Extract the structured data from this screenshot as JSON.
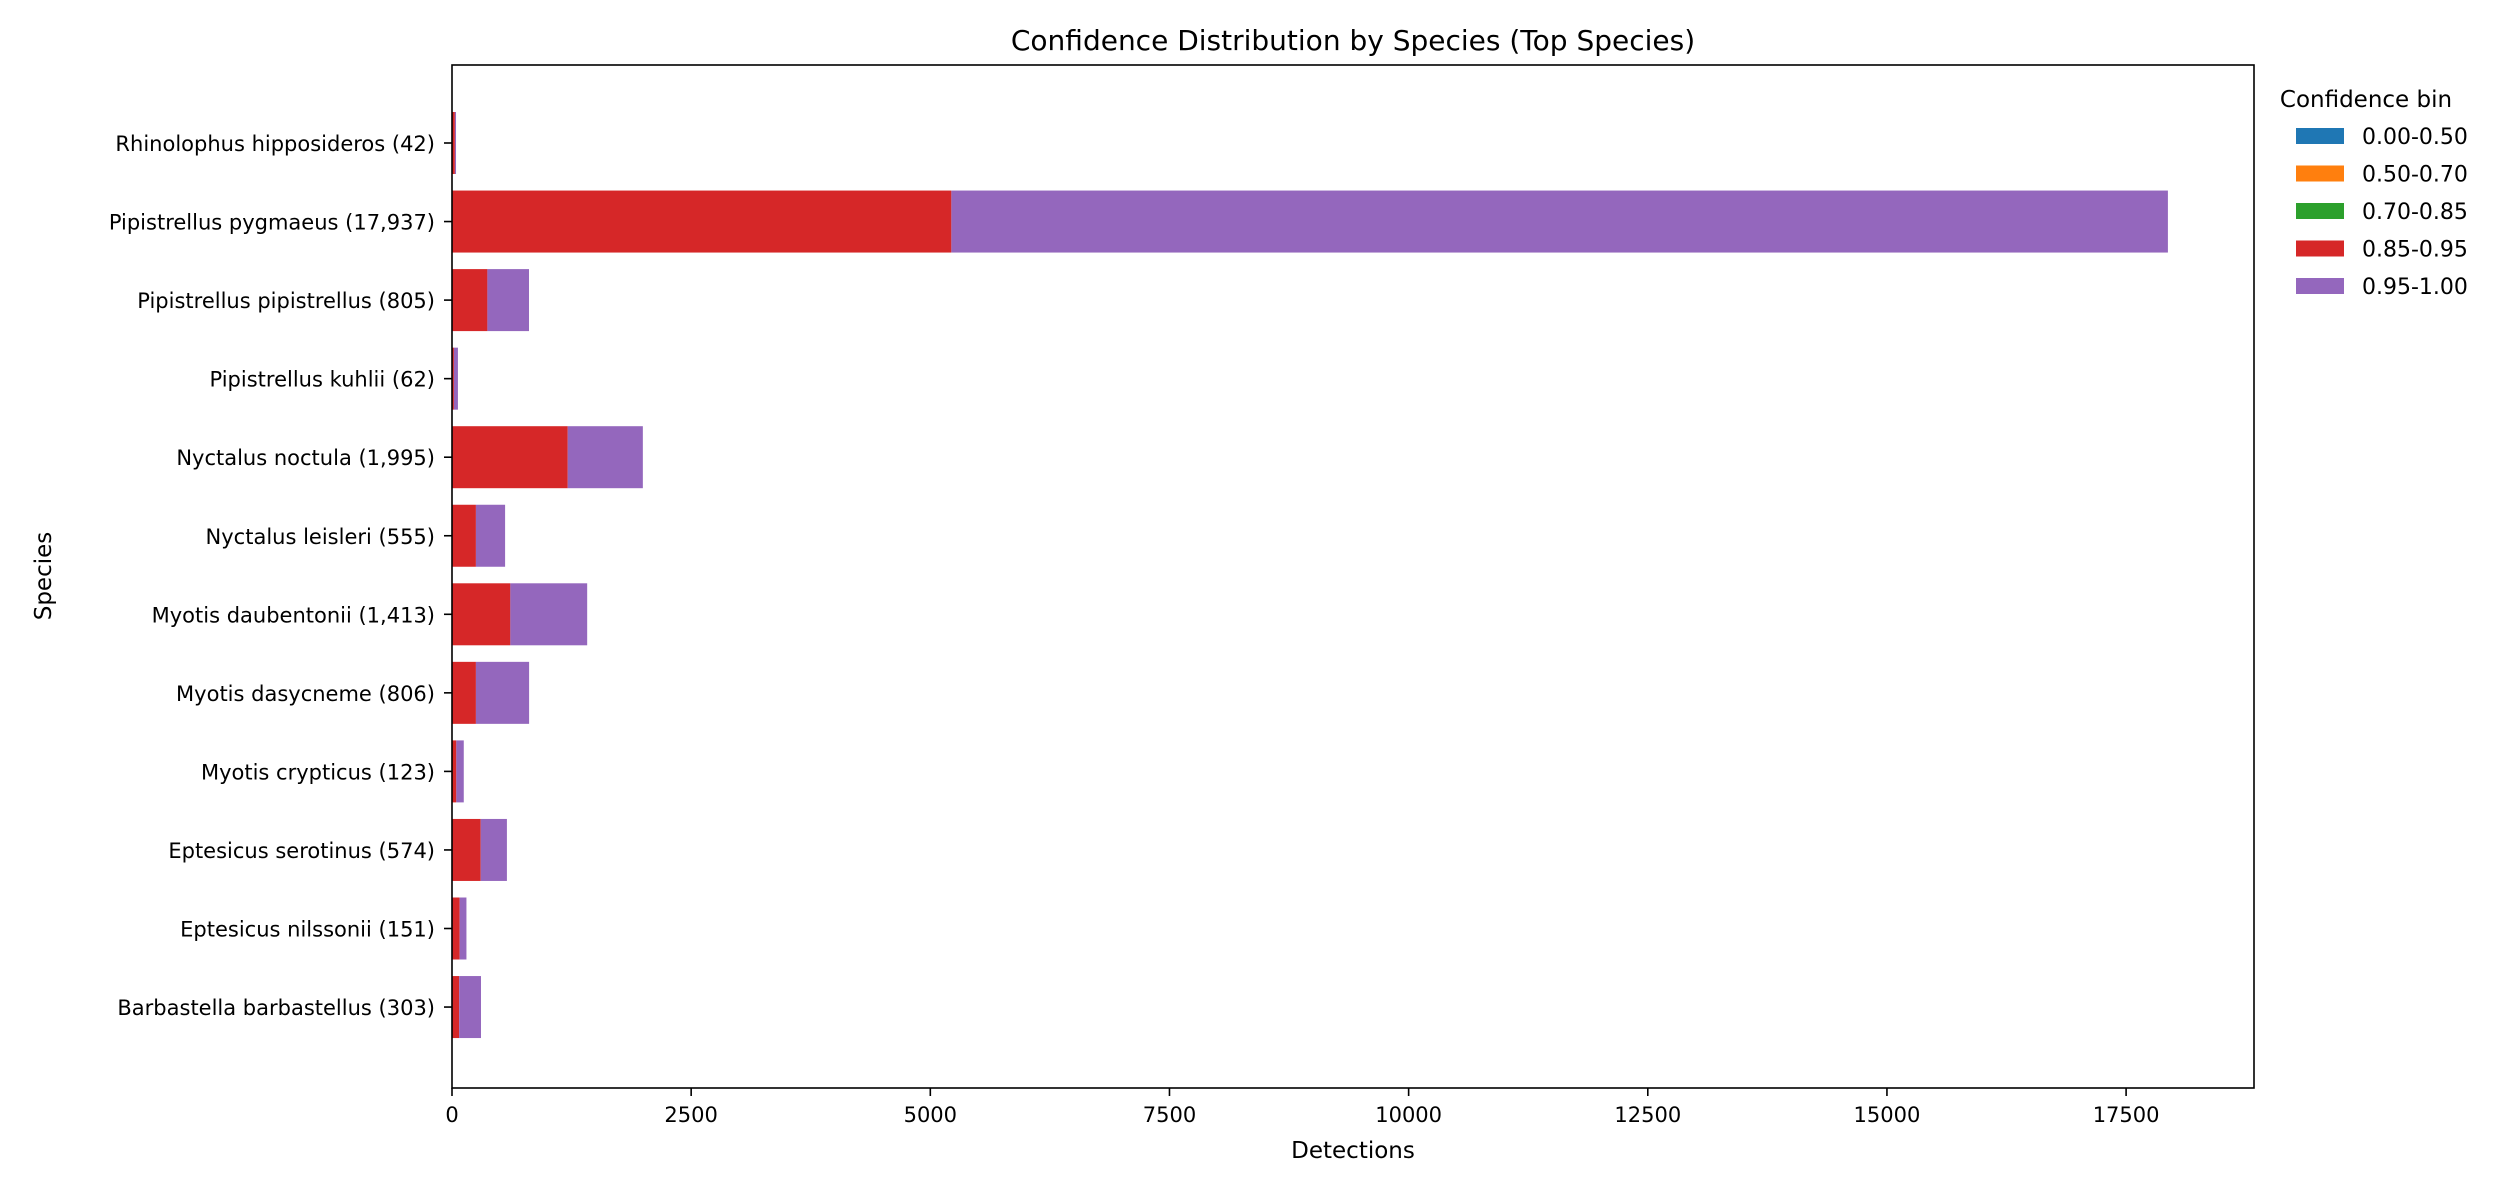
{
  "chart_data": {
    "type": "bar",
    "orientation": "horizontal",
    "stacked": true,
    "title": "Confidence Distribution by Species (Top Species)",
    "xlabel": "Detections",
    "ylabel": "Species",
    "xlim": [
      0,
      18837
    ],
    "xticks": [
      0,
      2500,
      5000,
      7500,
      10000,
      12500,
      15000,
      17500
    ],
    "grid": false,
    "legend": {
      "title": "Confidence bin",
      "placement": "outside-top-right"
    },
    "categories": [
      "Rhinolophus hipposideros  (42)",
      "Pipistrellus pygmaeus  (17,937)",
      "Pipistrellus pipistrellus  (805)",
      "Pipistrellus kuhlii  (62)",
      "Nyctalus noctula  (1,995)",
      "Nyctalus leisleri  (555)",
      "Myotis daubentonii  (1,413)",
      "Myotis dasycneme  (806)",
      "Myotis crypticus  (123)",
      "Eptesicus serotinus  (574)",
      "Eptesicus nilssonii  (151)",
      "Barbastella barbastellus  (303)"
    ],
    "series": [
      {
        "name": "0.00-0.50",
        "color": "#1f77b4",
        "values": [
          0,
          0,
          0,
          0,
          0,
          0,
          0,
          0,
          0,
          0,
          0,
          0
        ]
      },
      {
        "name": "0.50-0.70",
        "color": "#ff7f0e",
        "values": [
          0,
          0,
          0,
          0,
          0,
          0,
          0,
          0,
          0,
          0,
          0,
          0
        ]
      },
      {
        "name": "0.70-0.85",
        "color": "#2ca02c",
        "values": [
          0,
          0,
          0,
          0,
          0,
          0,
          0,
          0,
          0,
          0,
          0,
          0
        ]
      },
      {
        "name": "0.85-0.95",
        "color": "#d62728",
        "values": [
          30,
          5220,
          370,
          20,
          1210,
          250,
          610,
          250,
          45,
          300,
          80,
          75
        ]
      },
      {
        "name": "0.95-1.00",
        "color": "#9467bd",
        "values": [
          12,
          12717,
          435,
          42,
          785,
          305,
          803,
          556,
          78,
          274,
          71,
          228
        ]
      }
    ]
  }
}
